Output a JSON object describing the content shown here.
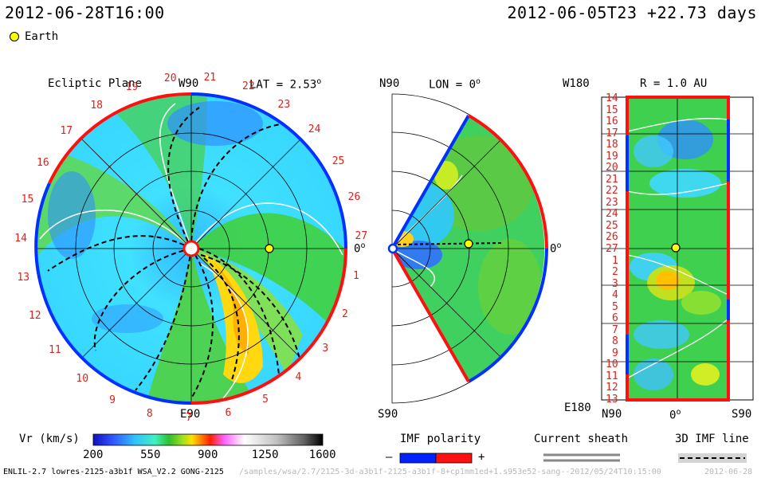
{
  "header": {
    "left_timestamp": "2012-06-28T16:00",
    "right_info": "2012-06-05T23 +22.73 days"
  },
  "legend": {
    "earth_label": "Earth",
    "earth_color": "#ffff00"
  },
  "panels": {
    "ecliptic": {
      "title": "Ecliptic Plane",
      "top_label": "W90",
      "lat_label": "LAT = 2.53",
      "lat_sup": "o",
      "bottom_label": "E90",
      "right_label": "0",
      "right_sup": "o",
      "numbers": [
        "20",
        "21",
        "22",
        "23",
        "24",
        "25",
        "26",
        "27",
        "1",
        "2",
        "3",
        "4",
        "5",
        "6",
        "7",
        "8",
        "9",
        "10",
        "11",
        "12",
        "13",
        "14",
        "15",
        "16",
        "17",
        "18",
        "19"
      ]
    },
    "meridional": {
      "top_label": "N90",
      "lon_label": "LON = 0",
      "lon_sup": "o",
      "bottom_label": "S90",
      "right_label": "0",
      "right_sup": "o"
    },
    "radial": {
      "top_label": "W180",
      "r_label": "R = 1.0 AU",
      "bottom_label": "E180",
      "x_left": "N90",
      "x_mid": "0",
      "x_mid_sup": "o",
      "x_right": "S90",
      "rows": [
        "14",
        "15",
        "16",
        "17",
        "18",
        "19",
        "20",
        "21",
        "22",
        "23",
        "24",
        "25",
        "26",
        "27",
        "1",
        "2",
        "3",
        "4",
        "5",
        "6",
        "7",
        "8",
        "9",
        "10",
        "11",
        "12",
        "13"
      ]
    }
  },
  "colorbar": {
    "label": "Vr (km/s)",
    "ticks": [
      "200",
      "550",
      "900",
      "1250",
      "1600"
    ],
    "stops": [
      "#1010c0",
      "#3050ff",
      "#30c0ff",
      "#40f0c0",
      "#30c030",
      "#a0e020",
      "#ffe000",
      "#ff8000",
      "#ff2000",
      "#ff60ff",
      "#ffffff",
      "#c0c0c0",
      "#606060",
      "#000000"
    ]
  },
  "imf": {
    "title": "IMF polarity",
    "minus": "–",
    "plus": "+",
    "negative_color": "#0020ff",
    "positive_color": "#ff1010"
  },
  "sheath": {
    "title": "Current sheath"
  },
  "imf3d": {
    "title": "3D IMF line"
  },
  "footer": {
    "left": "ENLIL-2.7 lowres-2125-a3b1f WSA_V2.2 GONG-2125",
    "faint": "/samples/wsa/2.7/2125-3d-a3b1f-2125-a3b1f-8+cp1mm1ed+1.s953e52-sang--2012/05/24T10:15:00",
    "right": "2012-06-28"
  }
}
